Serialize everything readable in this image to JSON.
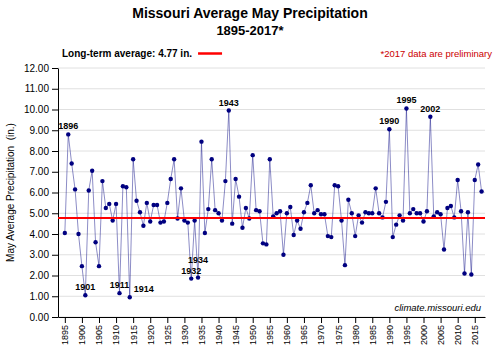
{
  "chart_data": {
    "type": "line",
    "title": "Missouri Average May Precipitation",
    "subtitle": "1895-2017*",
    "y_label": "May Average Precipitation  (in.)",
    "x": [
      1895,
      1896,
      1897,
      1898,
      1899,
      1900,
      1901,
      1902,
      1903,
      1904,
      1905,
      1906,
      1907,
      1908,
      1909,
      1910,
      1911,
      1912,
      1913,
      1914,
      1915,
      1916,
      1917,
      1918,
      1919,
      1920,
      1921,
      1922,
      1923,
      1924,
      1925,
      1926,
      1927,
      1928,
      1929,
      1930,
      1931,
      1932,
      1933,
      1934,
      1935,
      1936,
      1937,
      1938,
      1939,
      1940,
      1941,
      1942,
      1943,
      1944,
      1945,
      1946,
      1947,
      1948,
      1949,
      1950,
      1951,
      1952,
      1953,
      1954,
      1955,
      1956,
      1957,
      1958,
      1959,
      1960,
      1961,
      1962,
      1963,
      1964,
      1965,
      1966,
      1967,
      1968,
      1969,
      1970,
      1971,
      1972,
      1973,
      1974,
      1975,
      1976,
      1977,
      1978,
      1979,
      1980,
      1981,
      1982,
      1983,
      1984,
      1985,
      1986,
      1987,
      1988,
      1989,
      1990,
      1991,
      1992,
      1993,
      1994,
      1995,
      1996,
      1997,
      1998,
      1999,
      2000,
      2001,
      2002,
      2003,
      2004,
      2005,
      2006,
      2007,
      2008,
      2009,
      2010,
      2011,
      2012,
      2013,
      2014,
      2015,
      2016,
      2017
    ],
    "values": [
      4.05,
      8.8,
      7.4,
      6.15,
      4.0,
      2.45,
      1.05,
      6.1,
      7.05,
      3.6,
      2.45,
      6.55,
      5.25,
      5.45,
      4.65,
      5.45,
      1.15,
      6.3,
      6.25,
      0.95,
      7.6,
      5.6,
      5.05,
      4.4,
      5.5,
      4.6,
      5.4,
      5.4,
      4.55,
      4.6,
      5.5,
      6.65,
      7.6,
      4.75,
      6.2,
      4.65,
      4.55,
      1.85,
      4.65,
      1.9,
      8.45,
      4.05,
      5.2,
      7.6,
      5.15,
      5.0,
      4.65,
      6.55,
      9.95,
      4.5,
      6.65,
      5.8,
      4.3,
      5.25,
      4.75,
      7.8,
      5.15,
      5.1,
      3.55,
      3.5,
      7.6,
      4.85,
      5.0,
      5.1,
      3.0,
      5.0,
      5.3,
      3.95,
      4.65,
      4.25,
      5.05,
      5.5,
      6.35,
      5.0,
      5.15,
      4.95,
      4.95,
      3.9,
      3.85,
      6.35,
      6.3,
      4.65,
      2.5,
      5.65,
      5.0,
      3.9,
      4.9,
      4.55,
      5.05,
      5.0,
      5.0,
      6.2,
      5.0,
      4.8,
      5.55,
      9.05,
      3.85,
      4.45,
      4.9,
      4.65,
      10.05,
      5.0,
      5.2,
      5.0,
      5.0,
      4.6,
      5.1,
      9.65,
      4.85,
      5.05,
      4.95,
      3.25,
      5.25,
      5.35,
      4.8,
      6.6,
      5.1,
      2.1,
      5.05,
      2.05,
      6.6,
      7.35,
      6.05
    ],
    "color": "#000080",
    "marker": "circle",
    "xlim": [
      1893,
      2018
    ],
    "xticks": [
      1895,
      1900,
      1905,
      1910,
      1915,
      1920,
      1925,
      1930,
      1935,
      1940,
      1945,
      1950,
      1955,
      1960,
      1965,
      1970,
      1975,
      1980,
      1985,
      1990,
      1995,
      2000,
      2005,
      2010,
      2015
    ],
    "ylim": [
      0.0,
      12.0
    ],
    "yticks": [
      {
        "value": 0.0,
        "label": "0.00"
      },
      {
        "value": 1.0,
        "label": "1.00"
      },
      {
        "value": 2.0,
        "label": "2.00"
      },
      {
        "value": 3.0,
        "label": "3.00"
      },
      {
        "value": 4.0,
        "label": "4.00"
      },
      {
        "value": 5.0,
        "label": "5.00"
      },
      {
        "value": 6.0,
        "label": "6.00"
      },
      {
        "value": 7.0,
        "label": "7.00"
      },
      {
        "value": 8.0,
        "label": "8.00"
      },
      {
        "value": 9.0,
        "label": "9.00"
      },
      {
        "value": 10.0,
        "label": "10.00"
      },
      {
        "value": 11.0,
        "label": "11.00"
      },
      {
        "value": 12.0,
        "label": "12.00"
      }
    ],
    "grid": true,
    "reference_line": {
      "value": 4.77,
      "label": "Long-term average: 4.77 in.",
      "color": "#FF0000"
    },
    "note": {
      "text": "*2017 data are preliminary",
      "color": "#CC0000"
    },
    "source": "climate.missouri.edu",
    "annotations": [
      {
        "x": 1896,
        "y": 8.8,
        "text": "1896"
      },
      {
        "x": 1901,
        "y": 1.05,
        "text": "1901"
      },
      {
        "x": 1911,
        "y": 1.15,
        "text": "1911"
      },
      {
        "x": 1914,
        "y": 0.95,
        "text": "1914"
      },
      {
        "x": 1932,
        "y": 1.85,
        "text": "1932"
      },
      {
        "x": 1934,
        "y": 1.9,
        "text": "1934"
      },
      {
        "x": 1943,
        "y": 9.95,
        "text": "1943"
      },
      {
        "x": 1990,
        "y": 9.05,
        "text": "1990"
      },
      {
        "x": 1995,
        "y": 10.05,
        "text": "1995"
      },
      {
        "x": 2002,
        "y": 9.65,
        "text": "2002"
      }
    ]
  }
}
